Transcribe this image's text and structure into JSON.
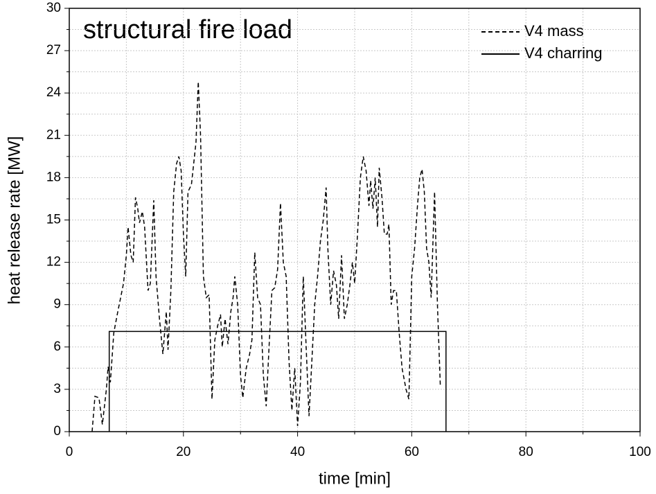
{
  "chart_data": {
    "type": "line",
    "annotation": "structural fire load",
    "x_label": "time [min]",
    "y_label": "heat release rate [MW]",
    "xlim": [
      0,
      100
    ],
    "xticks": [
      0,
      20,
      40,
      60,
      80,
      100
    ],
    "ylim": [
      0,
      30
    ],
    "yticks": [
      0,
      3,
      6,
      9,
      12,
      15,
      18,
      21,
      24,
      27,
      30
    ],
    "grid": true,
    "legend": "upper right",
    "series": [
      {
        "name": "V4 mass",
        "color": "#000000",
        "style": "dashed",
        "x": [
          4,
          4.5,
          5.2,
          5.8,
          6.5,
          6.8,
          7.2,
          7.8,
          8.5,
          9,
          9.5,
          10,
          10.3,
          10.8,
          11.2,
          11.6,
          12,
          12.3,
          12.8,
          13.2,
          13.8,
          14.2,
          14.8,
          15.2,
          15.8,
          16.4,
          17,
          17.3,
          17.8,
          18.3,
          18.8,
          19.2,
          19.6,
          20,
          20.4,
          20.8,
          21.4,
          21.8,
          22.2,
          22.6,
          23,
          23.5,
          24,
          24.5,
          25,
          25.5,
          26,
          26.5,
          26.8,
          27.3,
          27.8,
          28.3,
          28.7,
          29,
          29.5,
          30,
          30.4,
          31,
          31.6,
          32,
          32.5,
          33,
          33.5,
          34,
          34.5,
          35,
          35.5,
          36,
          36.5,
          37,
          37.5,
          38,
          38.5,
          39,
          39.5,
          40,
          40.5,
          41,
          41.5,
          42,
          42.5,
          43,
          43.5,
          44,
          44.5,
          45,
          45.3,
          45.8,
          46.3,
          46.8,
          47.2,
          47.7,
          48.2,
          48.7,
          49.2,
          49.6,
          50,
          50.5,
          51,
          51.5,
          52,
          52.5,
          52.8,
          53.2,
          53.6,
          54,
          54.3,
          54.8,
          55.2,
          55.7,
          56,
          56.4,
          56.8,
          57.3,
          57.8,
          58.3,
          59,
          59.5,
          60,
          60.5,
          61,
          61.4,
          61.8,
          62.2,
          62.6,
          63,
          63.4,
          64,
          64.5,
          65
        ],
        "values": [
          0,
          2.5,
          2.4,
          0.5,
          3,
          4.6,
          3.5,
          7,
          8.5,
          9.5,
          10.5,
          12.5,
          14.5,
          12.5,
          12,
          16.6,
          15.8,
          14.8,
          15.6,
          14.5,
          10,
          10.5,
          16.4,
          11,
          8,
          5.5,
          8.5,
          5.8,
          10,
          17,
          19,
          19.5,
          18.5,
          14,
          11,
          17,
          17.5,
          19,
          20.5,
          24.8,
          21,
          11,
          9.5,
          9.7,
          2.3,
          6.5,
          7.5,
          8.3,
          6,
          8,
          6.2,
          8.5,
          9.5,
          11,
          9,
          4,
          2.4,
          4.5,
          5.5,
          6.5,
          12.7,
          9.5,
          9,
          4,
          1.8,
          6,
          10,
          10.2,
          11.5,
          16.2,
          12,
          11,
          5,
          1.5,
          4.5,
          0.4,
          3.5,
          11,
          6,
          1.1,
          5,
          9,
          11,
          13.5,
          15,
          17.3,
          13,
          9,
          11.4,
          10.4,
          8,
          12.5,
          8,
          9,
          10.5,
          12,
          10.5,
          14,
          18,
          19.5,
          18.5,
          16,
          17.8,
          15.8,
          18,
          14.5,
          18.7,
          16.5,
          14,
          14,
          14.7,
          9,
          10,
          10,
          7,
          4.5,
          3,
          2.3,
          11,
          13,
          16,
          18,
          18.6,
          17,
          13,
          12,
          9.5,
          17,
          9,
          3.3
        ]
      },
      {
        "name": "V4 charring",
        "color": "#000000",
        "style": "solid",
        "x": [
          7,
          7,
          66,
          66
        ],
        "values": [
          0,
          7.1,
          7.1,
          0
        ]
      }
    ]
  }
}
